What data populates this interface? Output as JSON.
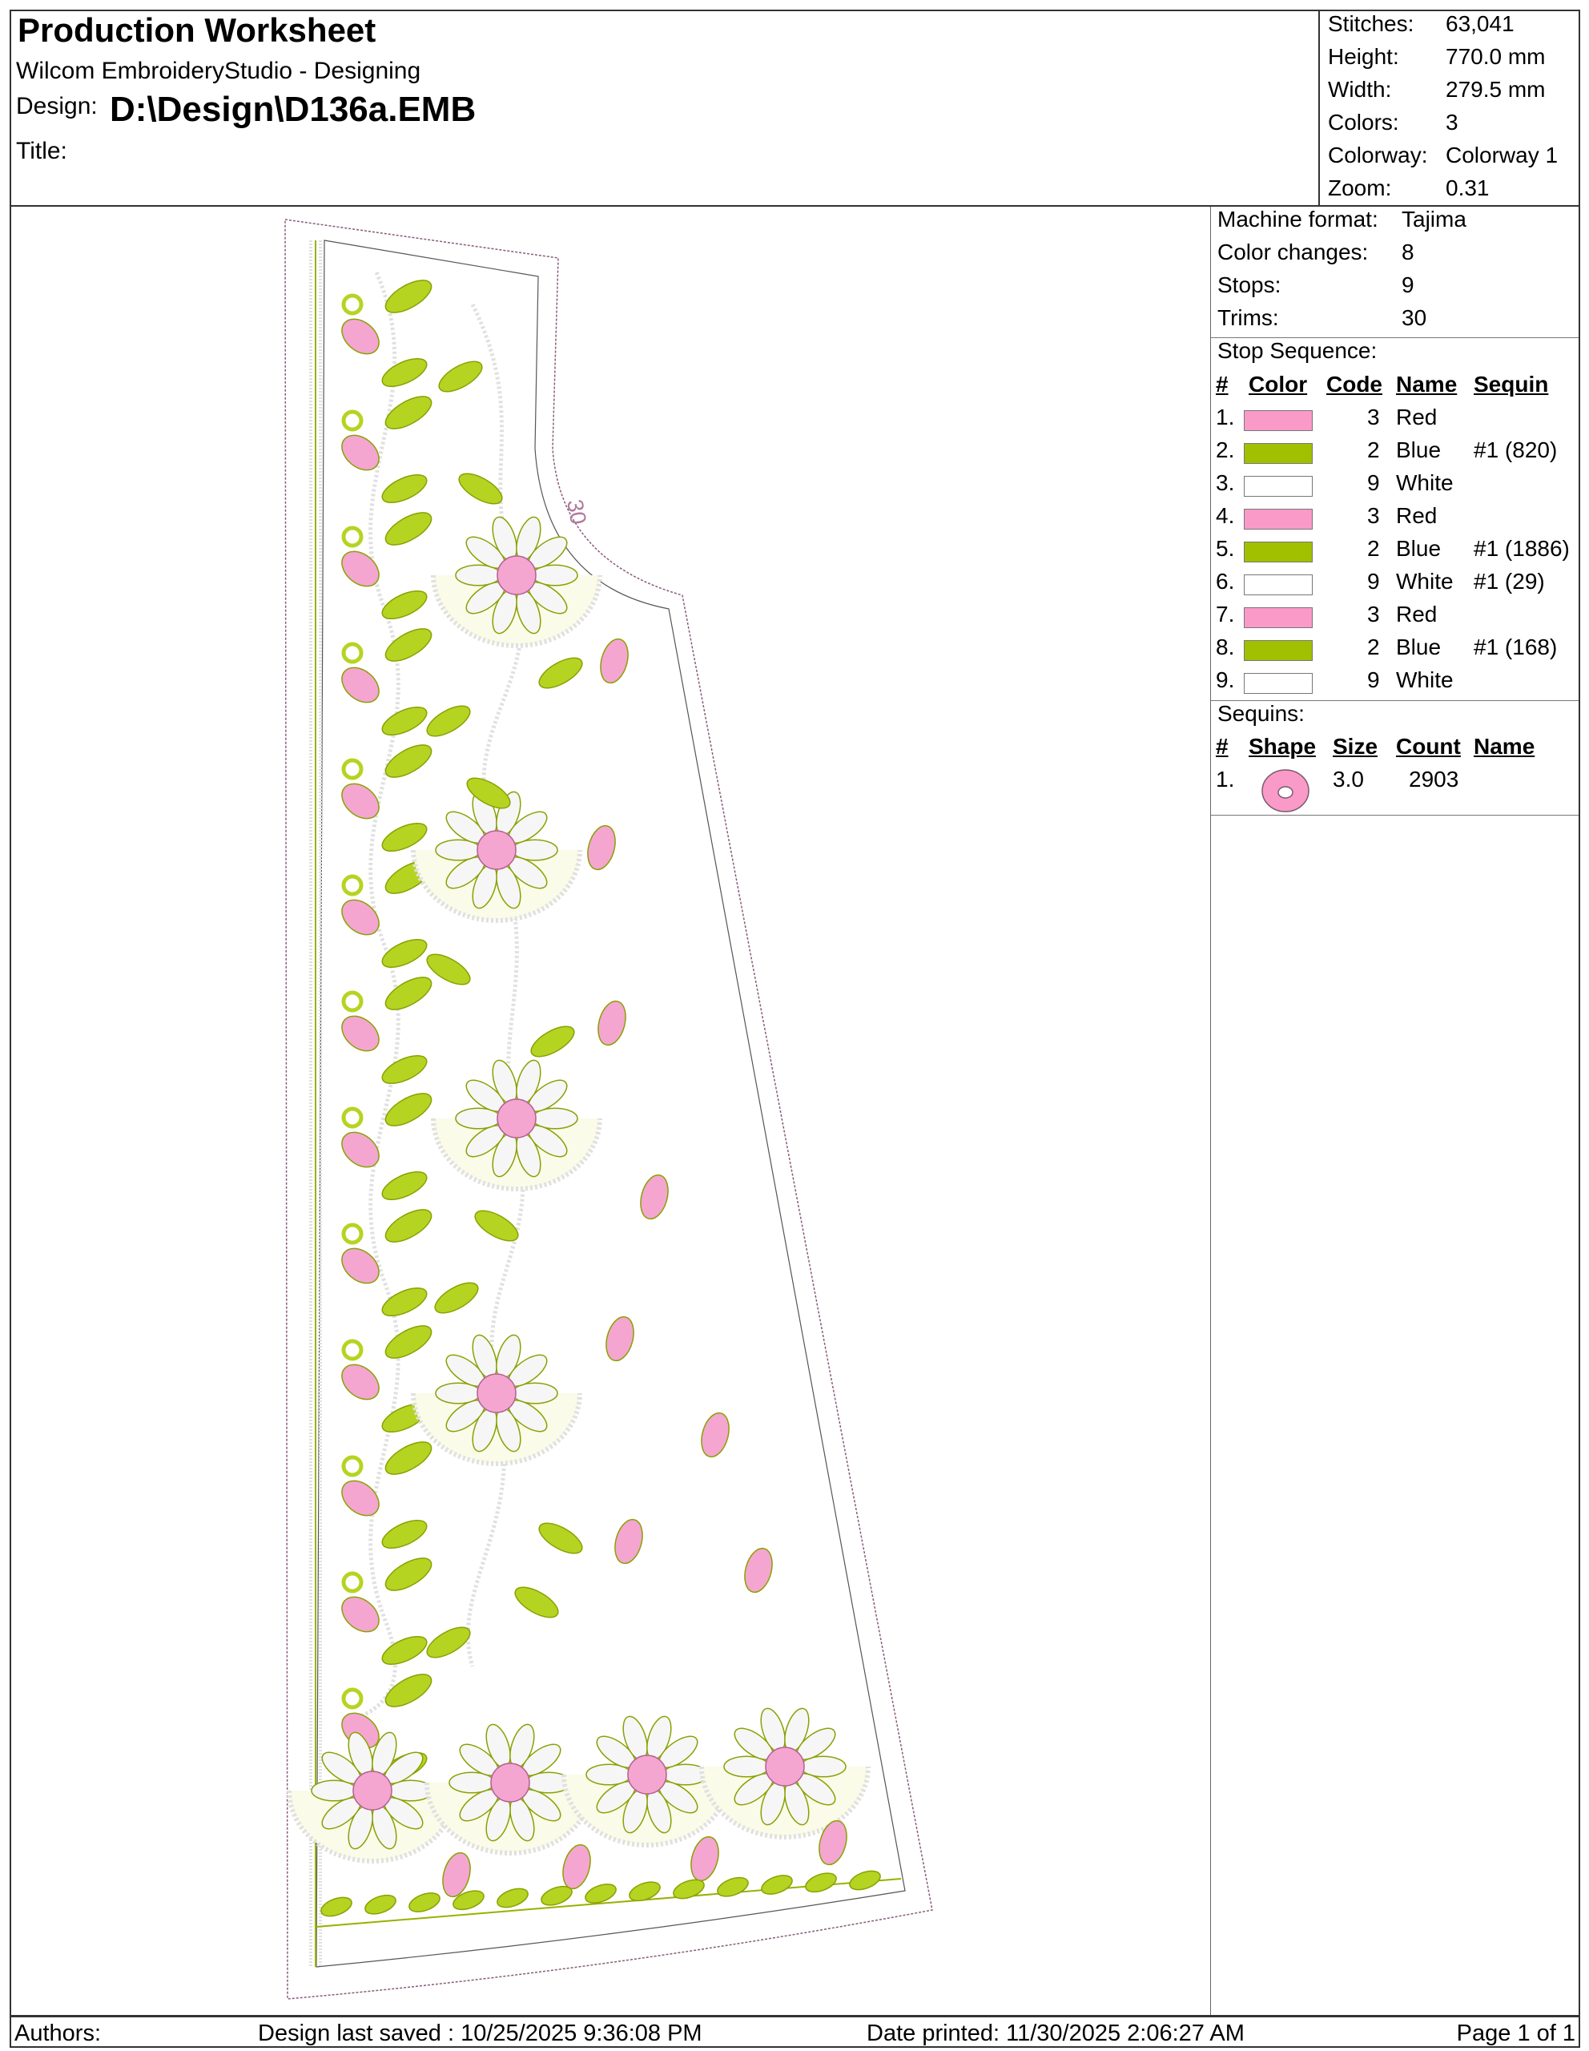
{
  "header": {
    "title": "Production Worksheet",
    "subtitle": "Wilcom EmbroideryStudio - Designing",
    "design_label": "Design:",
    "design_path": "D:\\Design\\D136a.EMB",
    "title_label": "Title:"
  },
  "stats": [
    {
      "label": "Stitches:",
      "value": "63,041"
    },
    {
      "label": "Height:",
      "value": "770.0 mm"
    },
    {
      "label": "Width:",
      "value": "279.5 mm"
    },
    {
      "label": "Colors:",
      "value": "3"
    },
    {
      "label": "Colorway:",
      "value": "Colorway 1"
    },
    {
      "label": "Zoom:",
      "value": "0.31"
    }
  ],
  "machine": [
    {
      "label": "Machine format:",
      "value": "Tajima"
    },
    {
      "label": "Color changes:",
      "value": "8"
    },
    {
      "label": "Stops:",
      "value": "9"
    },
    {
      "label": "Trims:",
      "value": "30"
    }
  ],
  "stop_sequence": {
    "heading": "Stop Sequence:",
    "columns": [
      "#",
      "Color",
      "Code",
      "Name",
      "Sequin"
    ],
    "rows": [
      {
        "num": "1.",
        "color": "#f99ac9",
        "code": "3",
        "name": "Red",
        "sequin": ""
      },
      {
        "num": "2.",
        "color": "#a0c000",
        "code": "2",
        "name": "Blue",
        "sequin": "#1 (820)"
      },
      {
        "num": "3.",
        "color": "#ffffff",
        "code": "9",
        "name": "White",
        "sequin": ""
      },
      {
        "num": "4.",
        "color": "#f99ac9",
        "code": "3",
        "name": "Red",
        "sequin": ""
      },
      {
        "num": "5.",
        "color": "#a0c000",
        "code": "2",
        "name": "Blue",
        "sequin": "#1 (1886)"
      },
      {
        "num": "6.",
        "color": "#ffffff",
        "code": "9",
        "name": "White",
        "sequin": "#1 (29)"
      },
      {
        "num": "7.",
        "color": "#f99ac9",
        "code": "3",
        "name": "Red",
        "sequin": ""
      },
      {
        "num": "8.",
        "color": "#a0c000",
        "code": "2",
        "name": "Blue",
        "sequin": "#1 (168)"
      },
      {
        "num": "9.",
        "color": "#ffffff",
        "code": "9",
        "name": "White",
        "sequin": ""
      }
    ]
  },
  "sequins": {
    "heading": "Sequins:",
    "columns": [
      "#",
      "Shape",
      "Size",
      "Count",
      "Name"
    ],
    "rows": [
      {
        "num": "1.",
        "shape": "circle-sequin-icon",
        "color": "#f99ac9",
        "size": "3.0",
        "count": "2903",
        "name": ""
      }
    ]
  },
  "design_preview": {
    "label": "30",
    "thread_colors": {
      "pink": "#f4a6d0",
      "green": "#b5d422",
      "white": "#e0e0e0",
      "outline": "#8a5a7a"
    }
  },
  "footer": {
    "authors": "Authors:",
    "last_saved": "Design last saved : 10/25/2025 9:36:08 PM",
    "date_printed": "Date printed: 11/30/2025 2:06:27 AM",
    "page": "Page 1 of 1"
  }
}
